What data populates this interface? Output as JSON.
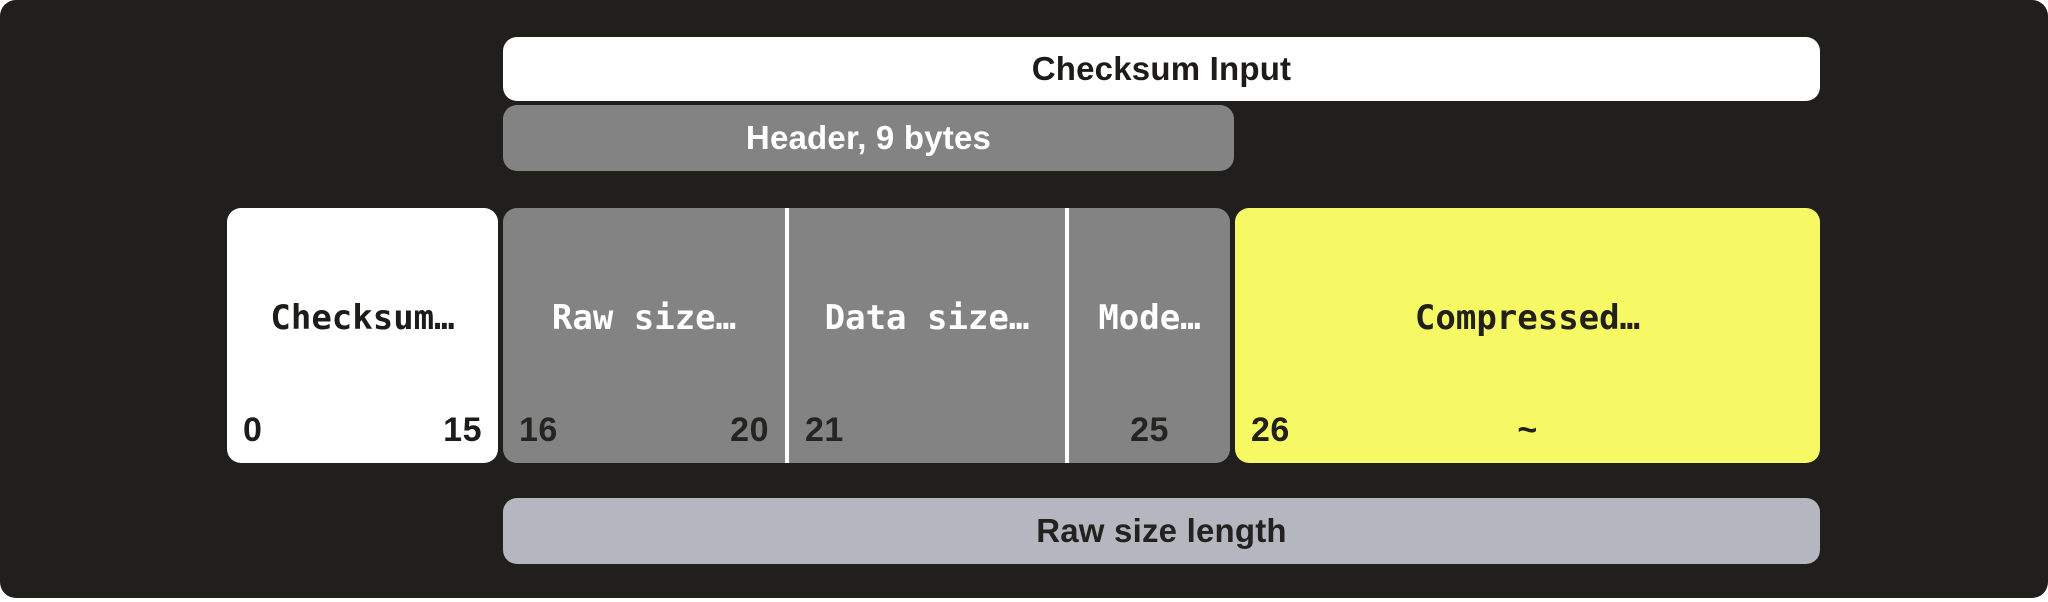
{
  "colors": {
    "panel_background": "#201f1c",
    "field_gray": "#838383",
    "footer_gray": "#b4b7bf",
    "compressed_yellow": "#f7f964",
    "white": "#ffffff",
    "dark_text": "#1d1c1a"
  },
  "bars": {
    "title": "Checksum Input",
    "header": "Header, 9 bytes",
    "footer": "Raw size length"
  },
  "blocks": [
    {
      "id": "checksum",
      "label": "Checksum…",
      "num_left": "0",
      "num_right": "15"
    },
    {
      "id": "raw-size",
      "label": "Raw size…",
      "num_left": "16",
      "num_right": "20"
    },
    {
      "id": "data-size",
      "label": "Data size…",
      "num_left": "21"
    },
    {
      "id": "mode",
      "label": "Mode…",
      "num_center": "25"
    },
    {
      "id": "compressed",
      "label": "Compressed…",
      "num_left": "26",
      "num_center": "~"
    }
  ]
}
